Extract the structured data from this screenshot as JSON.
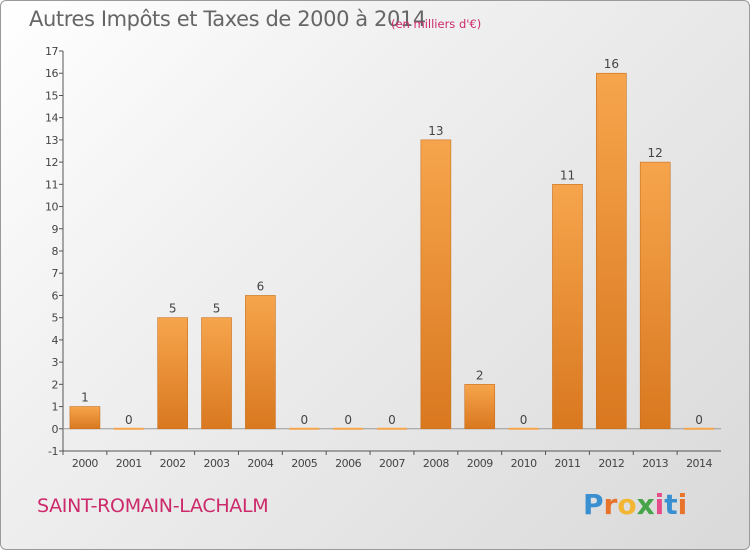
{
  "header": {
    "title": "Autres Impôts et Taxes de 2000 à 2014",
    "subtitle": "(en milliers d'€)"
  },
  "footer": {
    "commune": "SAINT-ROMAIN-LACHALM",
    "logo_letters": [
      "P",
      "r",
      "o",
      "x",
      "i",
      "t",
      "i"
    ],
    "logo_colors": [
      "#3a8fd0",
      "#e8732a",
      "#f2b632",
      "#46a548",
      "#e84b8a",
      "#3a8fd0",
      "#e8732a"
    ]
  },
  "chart_data": {
    "type": "bar",
    "title": "Autres Impôts et Taxes de 2000 à 2014",
    "categories": [
      "2000",
      "2001",
      "2002",
      "2003",
      "2004",
      "2005",
      "2006",
      "2007",
      "2008",
      "2009",
      "2010",
      "2011",
      "2012",
      "2013",
      "2014"
    ],
    "values": [
      1,
      0,
      5,
      5,
      6,
      0,
      0,
      0,
      13,
      2,
      0,
      11,
      16,
      12,
      0
    ],
    "data_labels": [
      "1",
      "0",
      "5",
      "5",
      "6",
      "0",
      "0",
      "0",
      "13",
      "2",
      "0",
      "11",
      "16",
      "12",
      "0"
    ],
    "yticks": [
      "-1",
      "0",
      "1",
      "2",
      "3",
      "4",
      "5",
      "6",
      "7",
      "8",
      "9",
      "10",
      "11",
      "12",
      "13",
      "14",
      "15",
      "16",
      "17"
    ],
    "ylim": [
      -1,
      17
    ],
    "xlabel": "",
    "ylabel": "",
    "grid": false,
    "bar_color_top": "#f6a54d",
    "bar_color_bottom": "#d9781f"
  }
}
